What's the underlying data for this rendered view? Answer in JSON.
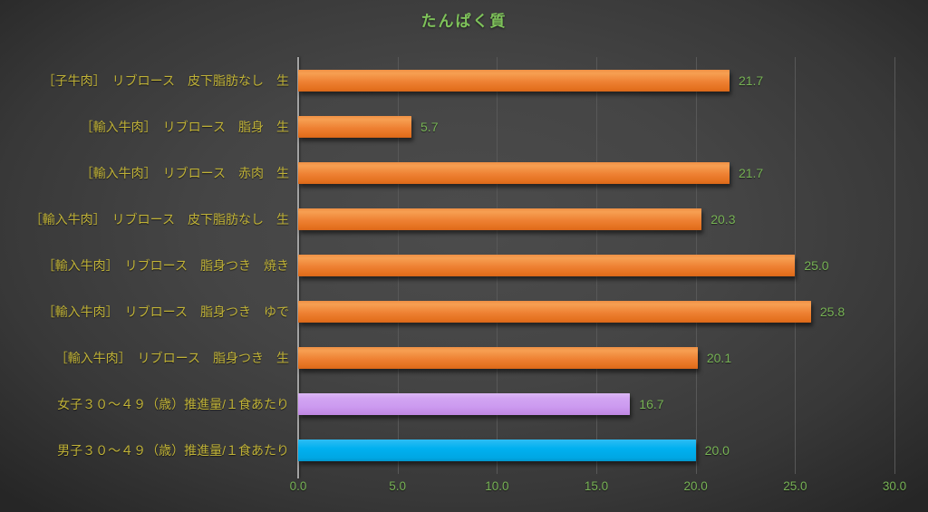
{
  "chart_data": {
    "type": "bar",
    "orientation": "horizontal",
    "title": "たんぱく質",
    "categories": [
      "［子牛肉］　リブロース　皮下脂肪なし　生",
      "［輸入牛肉］　リブロース　脂身　生",
      "［輸入牛肉］　リブロース　赤肉　生",
      "［輸入牛肉］　リブロース　皮下脂肪なし　生",
      "［輸入牛肉］　リブロース　脂身つき　焼き",
      "［輸入牛肉］　リブロース　脂身つき　ゆで",
      "［輸入牛肉］　リブロース　脂身つき　生",
      "女子３０～４９（歳）推進量/１食あたり",
      "男子３０～４９（歳）推進量/１食あたり"
    ],
    "values": [
      21.7,
      5.7,
      21.7,
      20.3,
      25.0,
      25.8,
      20.1,
      16.7,
      20.0
    ],
    "value_labels": [
      "21.7",
      "5.7",
      "21.7",
      "20.3",
      "25.0",
      "25.8",
      "20.1",
      "16.7",
      "20.0"
    ],
    "bar_colors": [
      "orange",
      "orange",
      "orange",
      "orange",
      "orange",
      "orange",
      "orange",
      "purple",
      "blue"
    ],
    "xlim": [
      0,
      30
    ],
    "x_ticks": [
      "0.0",
      "5.0",
      "10.0",
      "15.0",
      "20.0",
      "25.0",
      "30.0"
    ],
    "x_tick_values": [
      0,
      5,
      10,
      15,
      20,
      25,
      30
    ],
    "grid": true,
    "legend": "none"
  },
  "colors": {
    "title_text": "#7ec25a",
    "category_text": "#c0b237",
    "value_text": "#77b355",
    "axis_tick_text": "#77b355",
    "bar_orange": "#ed7d31",
    "bar_purple": "#cc99f0",
    "bar_blue": "#00b0f0",
    "gridline": "#585858",
    "axis_line": "#a3a3a3",
    "background_center": "#4c4c4c",
    "background_edge": "#262626"
  }
}
